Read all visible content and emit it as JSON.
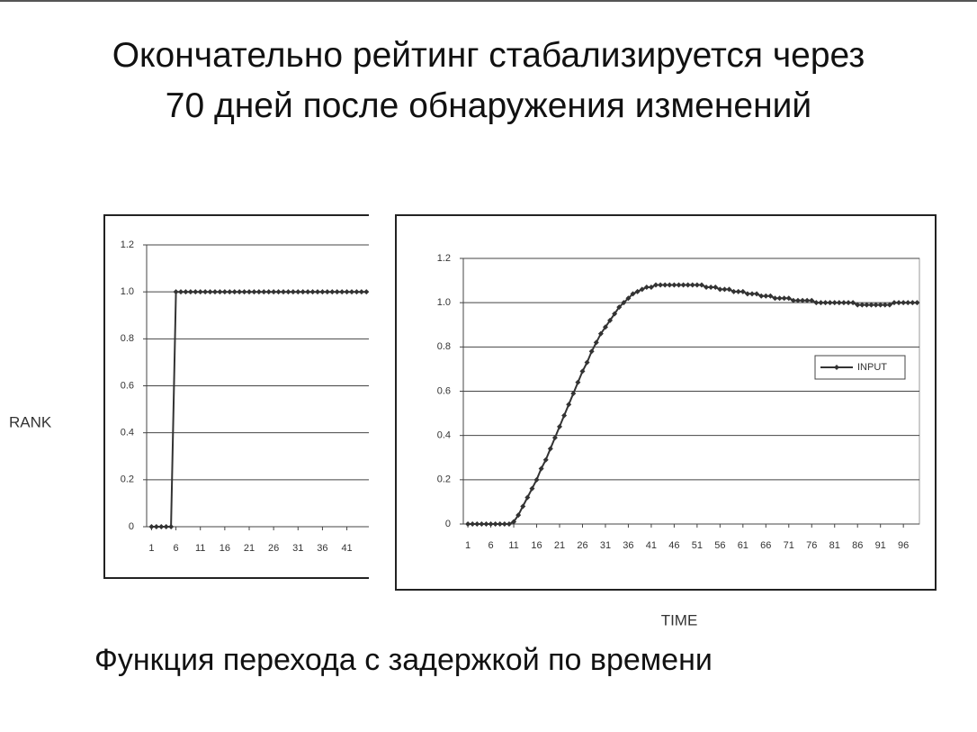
{
  "title": [
    "Окончательно рейтинг стабализируется через",
    "70 дней после обнаружения изменений"
  ],
  "caption": "Функция перехода с задержкой по времени",
  "chart_data": [
    {
      "type": "line",
      "ylabel": "RANK",
      "color": "#333333",
      "x": [
        1,
        2,
        3,
        4,
        5,
        6,
        7,
        8,
        9,
        10,
        11,
        12,
        13,
        14,
        15,
        16,
        17,
        18,
        19,
        20,
        21,
        22,
        23,
        24,
        25,
        26,
        27,
        28,
        29,
        30,
        31,
        32,
        33,
        34,
        35,
        36,
        37,
        38,
        39,
        40,
        41,
        42,
        43,
        44,
        45
      ],
      "values": [
        0,
        0,
        0,
        0,
        0,
        1,
        1,
        1,
        1,
        1,
        1,
        1,
        1,
        1,
        1,
        1,
        1,
        1,
        1,
        1,
        1,
        1,
        1,
        1,
        1,
        1,
        1,
        1,
        1,
        1,
        1,
        1,
        1,
        1,
        1,
        1,
        1,
        1,
        1,
        1,
        1,
        1,
        1,
        1,
        1
      ],
      "xlim": [
        0,
        45.5
      ],
      "xticks": [
        1,
        6,
        11,
        16,
        21,
        26,
        31,
        36,
        41
      ],
      "ylim": [
        0,
        1.2
      ],
      "yticks": [
        0,
        0.2,
        0.4,
        0.6,
        0.8,
        {
          "value": 1,
          "label": "1.0"
        },
        1.2
      ],
      "grid": true
    },
    {
      "type": "line",
      "xlabel": "TIME",
      "x": [
        1,
        2,
        3,
        4,
        5,
        6,
        7,
        8,
        9,
        10,
        11,
        12,
        13,
        14,
        15,
        16,
        17,
        18,
        19,
        20,
        21,
        22,
        23,
        24,
        25,
        26,
        27,
        28,
        29,
        30,
        31,
        32,
        33,
        34,
        35,
        36,
        37,
        38,
        39,
        40,
        41,
        42,
        43,
        44,
        45,
        46,
        47,
        48,
        49,
        50,
        51,
        52,
        53,
        54,
        55,
        56,
        57,
        58,
        59,
        60,
        61,
        62,
        63,
        64,
        65,
        66,
        67,
        68,
        69,
        70,
        71,
        72,
        73,
        74,
        75,
        76,
        77,
        78,
        79,
        80,
        81,
        82,
        83,
        84,
        85,
        86,
        87,
        88,
        89,
        90,
        91,
        92,
        93,
        94,
        95,
        96,
        97,
        98,
        99
      ],
      "series": [
        {
          "name": "INPUT",
          "color": "#333333",
          "values": [
            0,
            0,
            0,
            0,
            0,
            0,
            0,
            0,
            0,
            0,
            0.01,
            0.04,
            0.08,
            0.12,
            0.16,
            0.2,
            0.25,
            0.29,
            0.34,
            0.39,
            0.44,
            0.49,
            0.54,
            0.59,
            0.64,
            0.69,
            0.73,
            0.78,
            0.82,
            0.86,
            0.89,
            0.92,
            0.95,
            0.98,
            1,
            1.02,
            1.04,
            1.05,
            1.06,
            1.07,
            1.07,
            1.08,
            1.08,
            1.08,
            1.08,
            1.08,
            1.08,
            1.08,
            1.08,
            1.08,
            1.08,
            1.08,
            1.07,
            1.07,
            1.07,
            1.06,
            1.06,
            1.06,
            1.05,
            1.05,
            1.05,
            1.04,
            1.04,
            1.04,
            1.03,
            1.03,
            1.03,
            1.02,
            1.02,
            1.02,
            1.02,
            1.01,
            1.01,
            1.01,
            1.01,
            1.01,
            1,
            1,
            1,
            1,
            1,
            1,
            1,
            1,
            1,
            0.99,
            0.99,
            0.99,
            0.99,
            0.99,
            0.99,
            0.99,
            0.99,
            1,
            1,
            1,
            1,
            1,
            1
          ]
        }
      ],
      "xlim": [
        0,
        99.5
      ],
      "xticks": [
        1,
        6,
        11,
        16,
        21,
        26,
        31,
        36,
        41,
        46,
        51,
        56,
        61,
        66,
        71,
        76,
        81,
        86,
        91,
        96
      ],
      "ylim": [
        0,
        1.2
      ],
      "yticks": [
        0,
        0.2,
        0.4,
        0.6,
        0.8,
        {
          "value": 1,
          "label": "1.0"
        },
        1.2
      ],
      "grid": true
    }
  ]
}
